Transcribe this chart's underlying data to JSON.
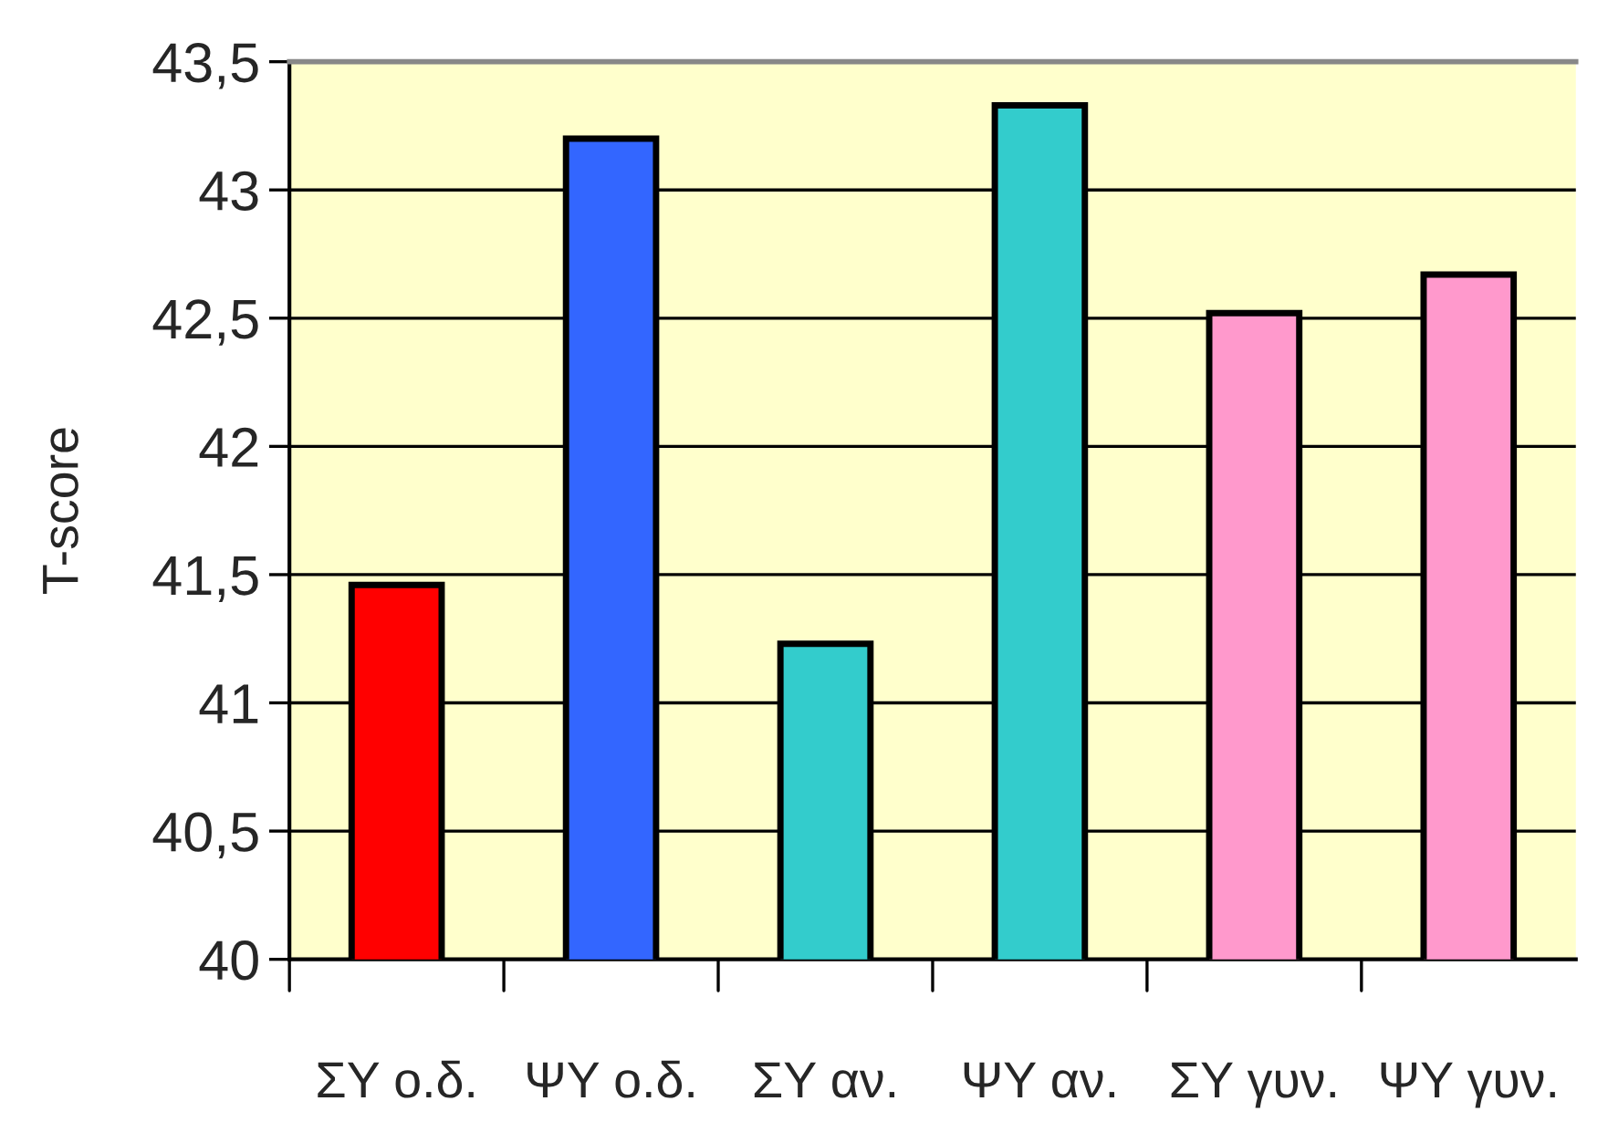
{
  "chart_data": {
    "type": "bar",
    "ylabel": "T-score",
    "categories": [
      "ΣΥ ο.δ.",
      "ΨΥ ο.δ.",
      "ΣΥ αν.",
      "ΨΥ αν.",
      "ΣΥ γυν.",
      "ΨΥ γυν."
    ],
    "values": [
      41.46,
      43.2,
      41.23,
      43.33,
      42.52,
      42.67
    ],
    "colors": [
      "#ff0000",
      "#3366ff",
      "#33cccc",
      "#33cccc",
      "#ff99cc",
      "#ff99cc"
    ],
    "ylim": [
      40,
      43.5
    ],
    "yticks": [
      {
        "value": 40,
        "label": "40"
      },
      {
        "value": 40.5,
        "label": "40,5"
      },
      {
        "value": 41,
        "label": "41"
      },
      {
        "value": 41.5,
        "label": "41,5"
      },
      {
        "value": 42,
        "label": "42"
      },
      {
        "value": 42.5,
        "label": "42,5"
      },
      {
        "value": 43,
        "label": "43"
      },
      {
        "value": 43.5,
        "label": "43,5"
      }
    ],
    "grid": "y",
    "legend": false
  }
}
